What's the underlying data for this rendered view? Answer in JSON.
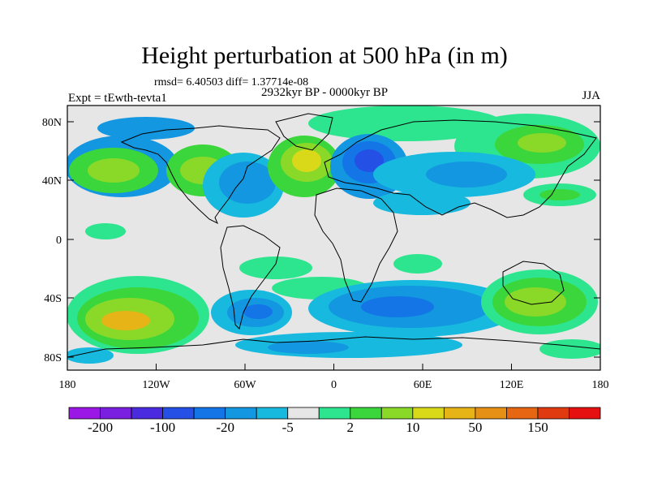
{
  "title": "Height perturbation at 500 hPa (in m)",
  "stats": "rmsd= 6.40503 diff= 1.37714e-08",
  "period": "2932kyr BP - 0000kyr BP",
  "experiment": "Expt = tEwth-tevta1",
  "season": "JJA",
  "y_ticks": [
    "80N",
    "40N",
    "0",
    "40S",
    "80S"
  ],
  "x_ticks": [
    "180",
    "120W",
    "60W",
    "0",
    "60E",
    "120E",
    "180"
  ],
  "colorbar": {
    "labels": [
      "-200",
      "-100",
      "-20",
      "-5",
      "2",
      "10",
      "50",
      "150"
    ],
    "colors": [
      "#9a17e6",
      "#7a1fe0",
      "#4b2be0",
      "#2450e6",
      "#1475e6",
      "#1297e0",
      "#17b9de",
      "#e6e6e6",
      "#2ee58f",
      "#3bd63b",
      "#8ad929",
      "#d9d91a",
      "#e6b417",
      "#e69115",
      "#e66612",
      "#e03b10",
      "#e61010"
    ]
  },
  "map_colors": {
    "neutral": "#e6e6e6",
    "lightcyan": "#17b9de",
    "cyan": "#1297e0",
    "blue": "#1475e6",
    "darkblue": "#2450e6",
    "mint": "#2ee58f",
    "green": "#3bd63b",
    "lime": "#8ad929",
    "yellow": "#d9d91a",
    "orange": "#e6b417"
  }
}
